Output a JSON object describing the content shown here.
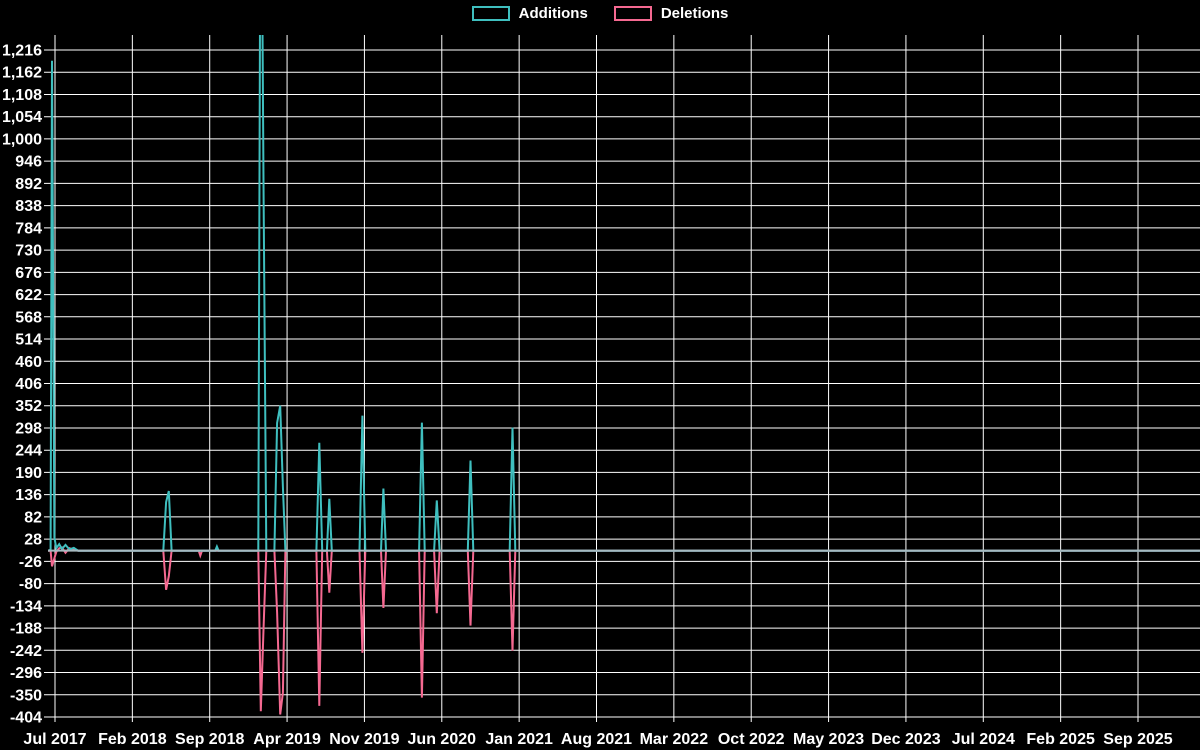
{
  "legend": {
    "items": [
      {
        "label": "Additions",
        "color": "#3fbfbf"
      },
      {
        "label": "Deletions",
        "color": "#f56991"
      }
    ]
  },
  "chart_data": {
    "type": "line",
    "title": "",
    "background": "#000000",
    "grid": {
      "on": true,
      "color": "#ffffff"
    },
    "zero_line_color": "#a6bac0",
    "legend_position": "top-center",
    "x_axis": {
      "unit": "months_after_jul_2017",
      "tick_labels": [
        "Jul 2017",
        "Feb 2018",
        "Sep 2018",
        "Apr 2019",
        "Nov 2019",
        "Jun 2020",
        "Jan 2021",
        "Aug 2021",
        "Mar 2022",
        "Oct 2022",
        "May 2023",
        "Dec 2023",
        "Jul 2024",
        "Feb 2025",
        "Sep 2025"
      ],
      "tick_month_offsets": [
        0,
        7,
        14,
        21,
        28,
        35,
        42,
        49,
        56,
        63,
        70,
        77,
        84,
        91,
        98
      ],
      "range_months": [
        -0.63,
        103.6
      ]
    },
    "y_axis": {
      "tick_values": [
        1216,
        1162,
        1108,
        1054,
        1000,
        946,
        892,
        838,
        784,
        730,
        676,
        622,
        568,
        514,
        460,
        406,
        352,
        298,
        244,
        190,
        136,
        82,
        28,
        -26,
        -80,
        -134,
        -188,
        -242,
        -296,
        -350,
        -404
      ],
      "tick_labels": [
        "1,216",
        "1,162",
        "1,108",
        "1,054",
        "1,000",
        "946",
        "892",
        "838",
        "784",
        "730",
        "676",
        "622",
        "568",
        "514",
        "460",
        "406",
        "352",
        "298",
        "244",
        "190",
        "136",
        "82",
        "28",
        "-26",
        "-80",
        "-134",
        "-188",
        "-242",
        "-296",
        "-350",
        "-404"
      ],
      "step": 54,
      "clip_range": [
        -418,
        1252
      ]
    },
    "series": [
      {
        "name": "Additions",
        "color": "#3fbfbf",
        "points": [
          [
            -0.63,
            0
          ],
          [
            -0.4,
            2
          ],
          [
            -0.27,
            1190
          ],
          [
            -0.05,
            32
          ],
          [
            0.12,
            6
          ],
          [
            0.38,
            16
          ],
          [
            0.62,
            4
          ],
          [
            0.95,
            14
          ],
          [
            1.3,
            3
          ],
          [
            1.7,
            7
          ],
          [
            2.1,
            0
          ],
          [
            9.8,
            0
          ],
          [
            10.05,
            118
          ],
          [
            10.3,
            145
          ],
          [
            10.55,
            0
          ],
          [
            14.5,
            0
          ],
          [
            14.65,
            10
          ],
          [
            14.8,
            0
          ],
          [
            18.4,
            0
          ],
          [
            18.62,
            1900
          ],
          [
            18.88,
            860
          ],
          [
            19.12,
            0
          ],
          [
            19.85,
            0
          ],
          [
            20.1,
            310
          ],
          [
            20.38,
            352
          ],
          [
            20.62,
            155
          ],
          [
            20.85,
            0
          ],
          [
            23.65,
            0
          ],
          [
            23.92,
            262
          ],
          [
            24.18,
            0
          ],
          [
            24.6,
            0
          ],
          [
            24.82,
            126
          ],
          [
            25.05,
            0
          ],
          [
            27.55,
            0
          ],
          [
            27.82,
            328
          ],
          [
            28.08,
            0
          ],
          [
            29.5,
            0
          ],
          [
            29.72,
            151
          ],
          [
            29.95,
            0
          ],
          [
            32.95,
            0
          ],
          [
            33.2,
            311
          ],
          [
            33.45,
            0
          ],
          [
            34.3,
            0
          ],
          [
            34.55,
            122
          ],
          [
            34.8,
            0
          ],
          [
            37.35,
            0
          ],
          [
            37.6,
            219
          ],
          [
            37.85,
            0
          ],
          [
            41.15,
            0
          ],
          [
            41.4,
            299
          ],
          [
            41.65,
            0
          ],
          [
            103.6,
            0
          ]
        ]
      },
      {
        "name": "Deletions",
        "color": "#f56991",
        "points": [
          [
            -0.63,
            0
          ],
          [
            -0.4,
            0
          ],
          [
            -0.27,
            -38
          ],
          [
            -0.05,
            -18
          ],
          [
            0.12,
            -3
          ],
          [
            0.38,
            6
          ],
          [
            0.62,
            8
          ],
          [
            0.95,
            -5
          ],
          [
            1.3,
            6
          ],
          [
            1.7,
            2
          ],
          [
            2.1,
            0
          ],
          [
            9.8,
            0
          ],
          [
            10.05,
            -95
          ],
          [
            10.3,
            -62
          ],
          [
            10.55,
            0
          ],
          [
            13.0,
            0
          ],
          [
            13.15,
            -12
          ],
          [
            13.3,
            0
          ],
          [
            18.4,
            0
          ],
          [
            18.62,
            -390
          ],
          [
            18.88,
            -185
          ],
          [
            19.12,
            0
          ],
          [
            19.85,
            0
          ],
          [
            20.1,
            -150
          ],
          [
            20.38,
            -398
          ],
          [
            20.62,
            -345
          ],
          [
            20.85,
            0
          ],
          [
            23.65,
            0
          ],
          [
            23.92,
            -377
          ],
          [
            24.18,
            0
          ],
          [
            24.6,
            0
          ],
          [
            24.82,
            -102
          ],
          [
            25.05,
            0
          ],
          [
            27.55,
            0
          ],
          [
            27.82,
            -248
          ],
          [
            28.08,
            0
          ],
          [
            29.5,
            0
          ],
          [
            29.72,
            -139
          ],
          [
            29.95,
            0
          ],
          [
            32.95,
            0
          ],
          [
            33.2,
            -357
          ],
          [
            33.45,
            0
          ],
          [
            34.3,
            0
          ],
          [
            34.55,
            -152
          ],
          [
            34.8,
            0
          ],
          [
            37.35,
            0
          ],
          [
            37.6,
            -182
          ],
          [
            37.85,
            0
          ],
          [
            41.15,
            0
          ],
          [
            41.4,
            -243
          ],
          [
            41.65,
            0
          ],
          [
            103.6,
            0
          ]
        ]
      }
    ]
  }
}
